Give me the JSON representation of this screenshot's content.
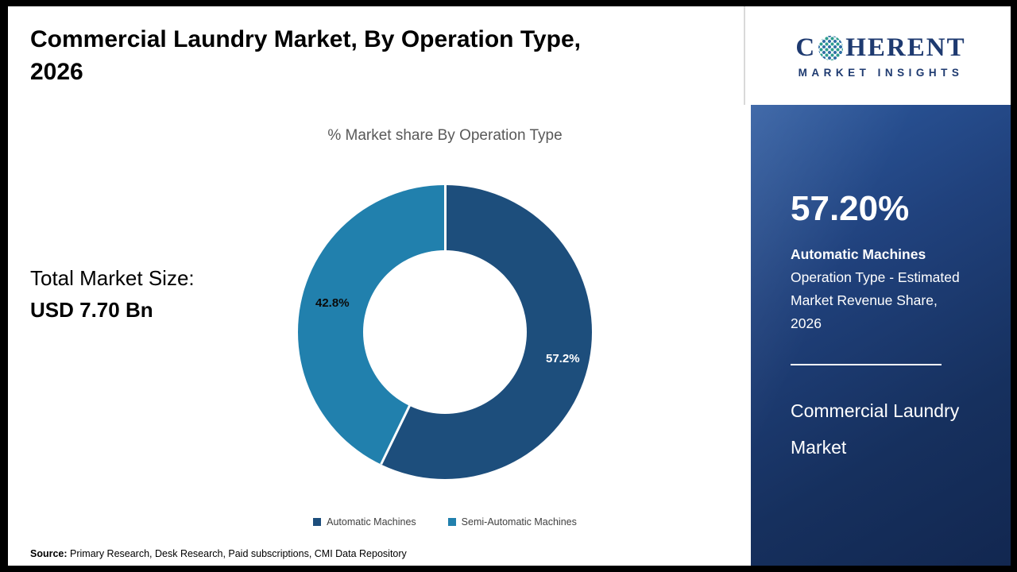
{
  "page": {
    "title_line1": "Commercial Laundry Market, By Operation Type,",
    "title_line2": "2026",
    "total_label": "Total Market Size:",
    "total_value": "USD 7.70 Bn",
    "source_label": "Source:",
    "source_text": " Primary Research, Desk Research, Paid subscriptions, CMI Data Repository"
  },
  "logo": {
    "part1": "C",
    "part2": "HERENT",
    "subtitle": "MARKET INSIGHTS"
  },
  "sidebar": {
    "stat_value": "57.20%",
    "stat_bold": "Automatic Machines",
    "stat_rest": " Operation Type - Estimated Market Revenue Share, 2026",
    "title": "Commercial Laundry Market"
  },
  "chart_data": {
    "type": "pie",
    "donut": true,
    "title": "% Market share By Operation Type",
    "categories": [
      "Automatic Machines",
      "Semi-Automatic Machines"
    ],
    "values": [
      57.2,
      42.8
    ],
    "labels": [
      "57.2%",
      "42.8%"
    ],
    "colors": [
      "#1d4e7c",
      "#2180ad"
    ],
    "legend_position": "bottom",
    "start_angle_deg": 0,
    "direction": "clockwise"
  }
}
